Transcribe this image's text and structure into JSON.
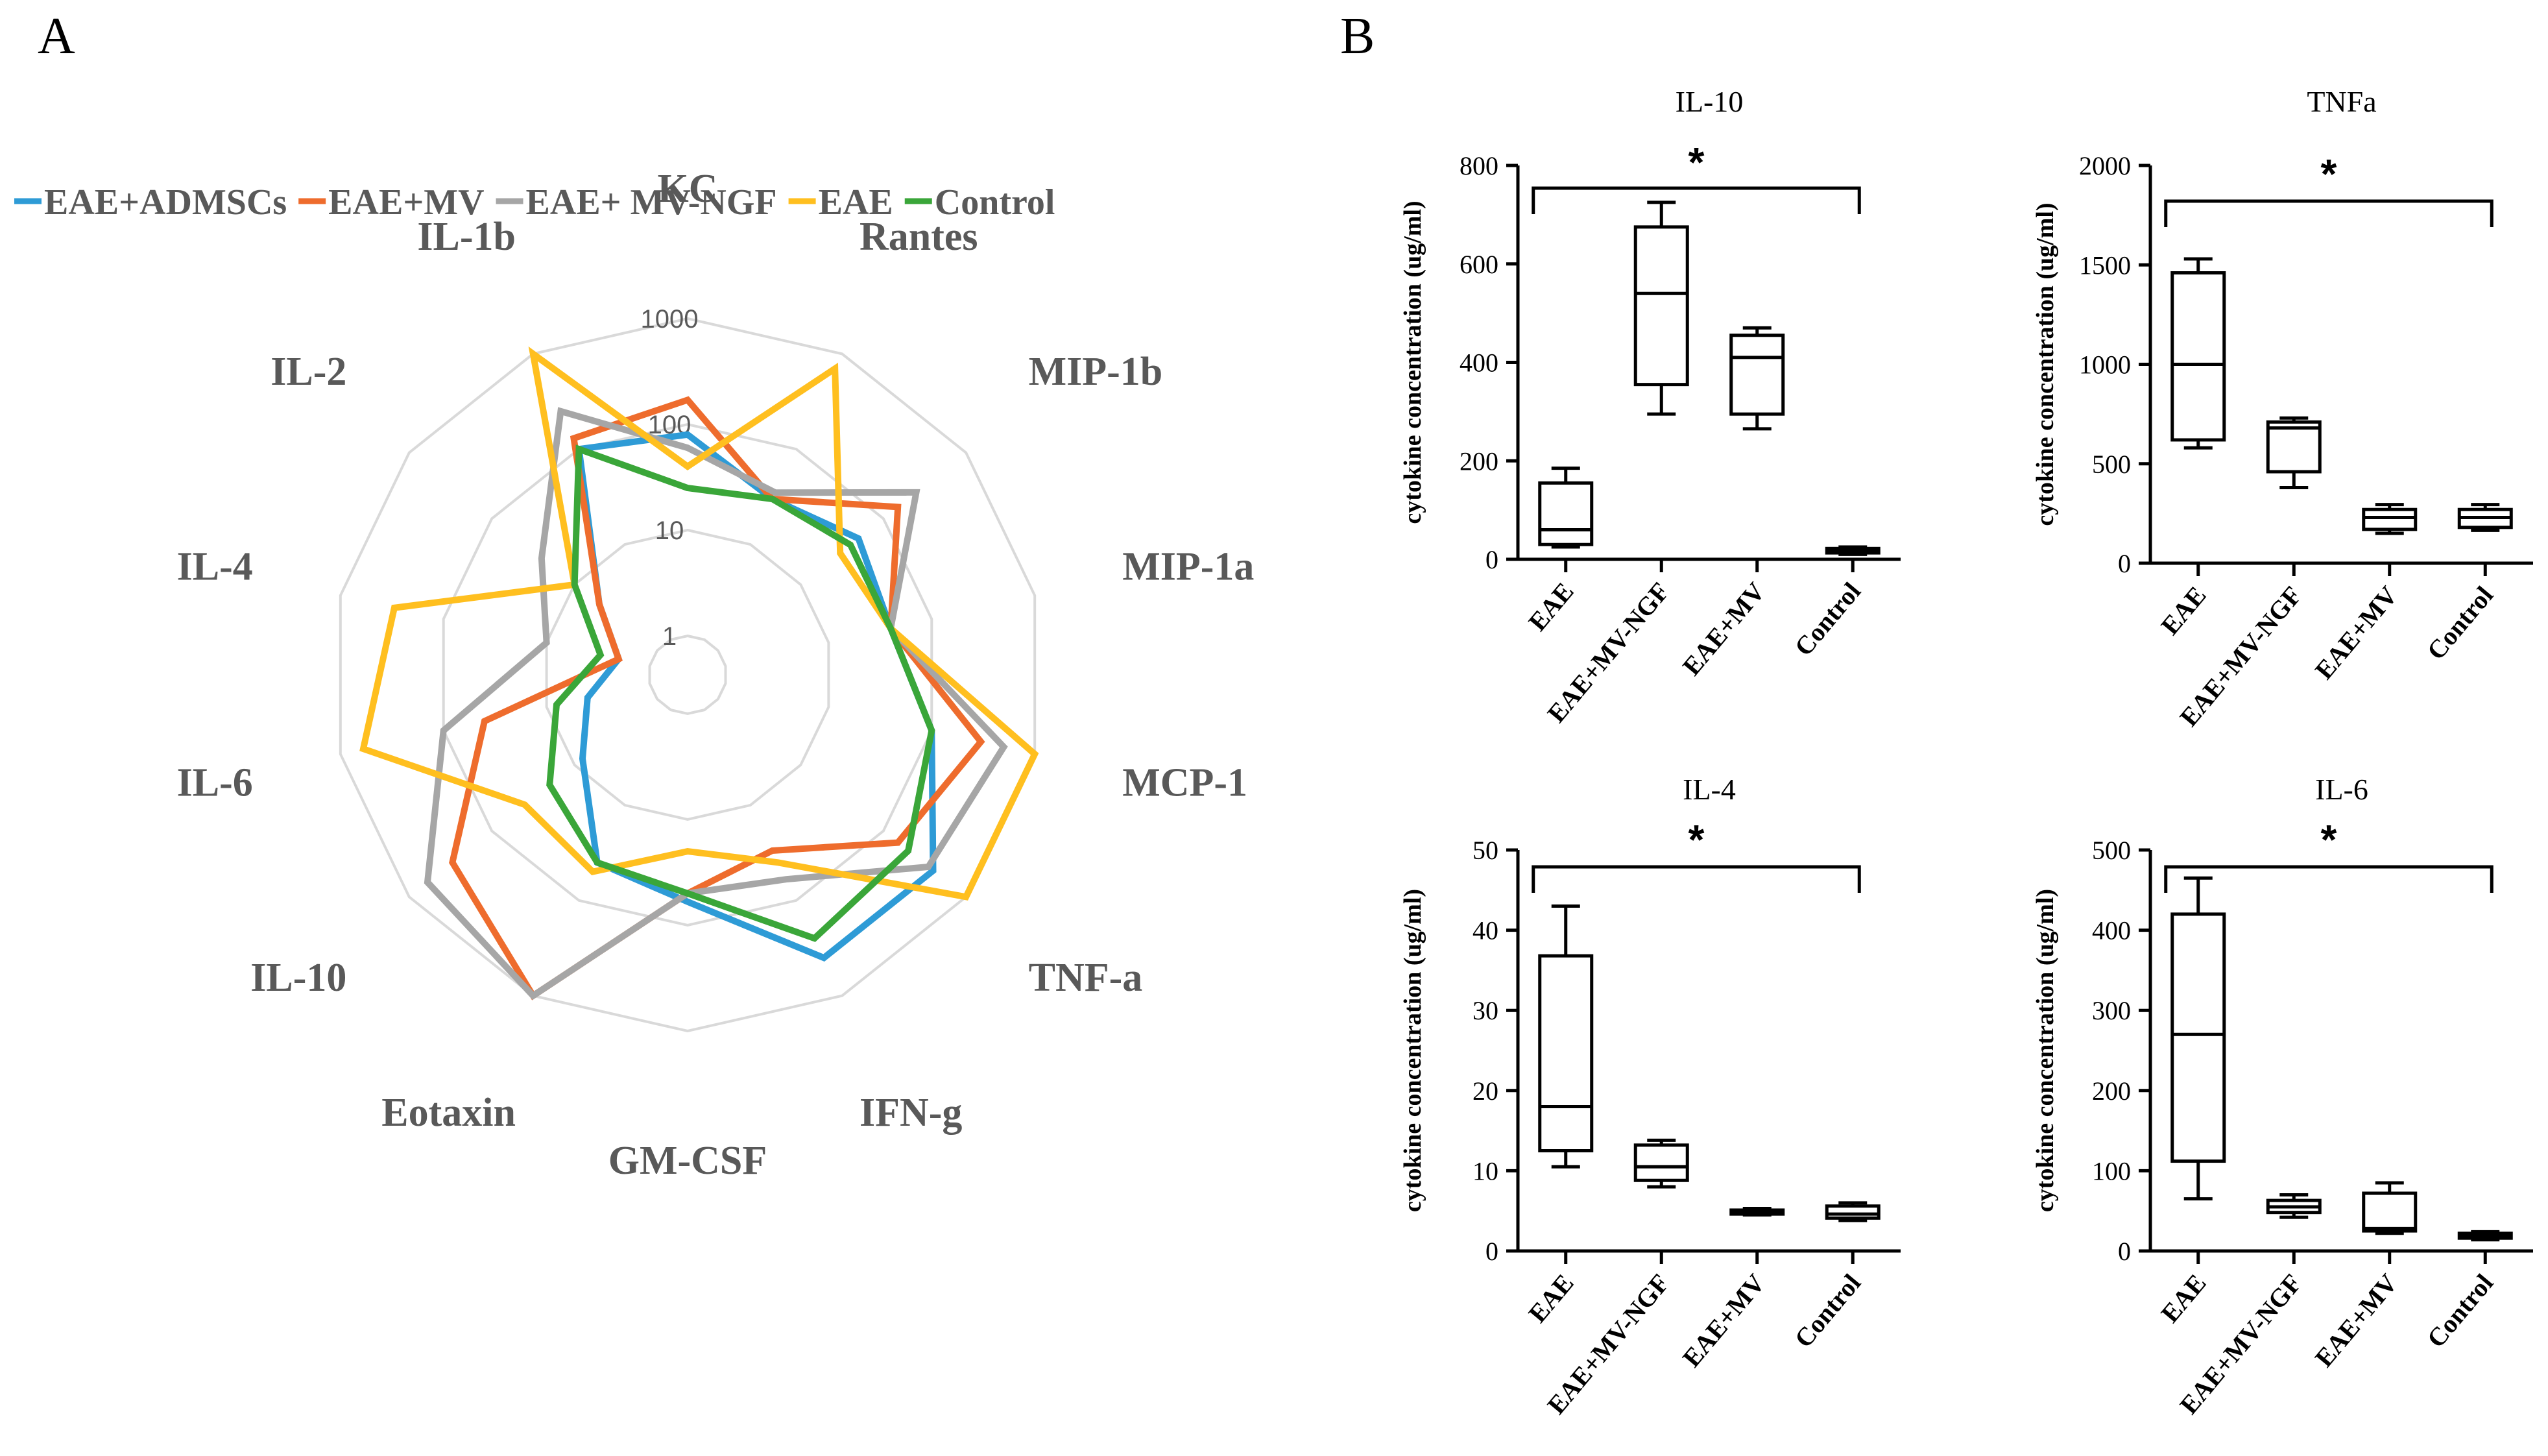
{
  "panels": {
    "a": "A",
    "b": "B"
  },
  "chart_data": [
    {
      "type": "radar",
      "scale": "log",
      "rings": [
        "1",
        "10",
        "100",
        "1000"
      ],
      "categories": [
        "KC",
        "Rantes",
        "MIP-1b",
        "MIP-1a",
        "MCP-1",
        "TNF-a",
        "IFN-g",
        "GM-CSF",
        "Eotaxin",
        "IL-10",
        "IL-6",
        "IL-4",
        "IL-2",
        "IL-1b"
      ],
      "legend_position": "top",
      "series": [
        {
          "name": "EAE+ADMSCs",
          "color": "#2e9bd6",
          "values": [
            80,
            30,
            50,
            40,
            100,
            400,
            400,
            60,
            40,
            8,
            4,
            2,
            5,
            100
          ]
        },
        {
          "name": "EAE+MV",
          "color": "#ee6c2d",
          "values": [
            170,
            30,
            150,
            40,
            300,
            150,
            30,
            50,
            1000,
            300,
            40,
            2,
            5,
            130
          ]
        },
        {
          "name": "EAE+ MV-NGF",
          "color": "#a6a6a6",
          "values": [
            60,
            35,
            250,
            40,
            500,
            350,
            60,
            50,
            1000,
            600,
            100,
            10,
            25,
            250
          ]
        },
        {
          "name": "EAE",
          "color": "#ffbf1f",
          "values": [
            40,
            700,
            30,
            40,
            1000,
            1000,
            40,
            20,
            50,
            40,
            600,
            300,
            10,
            1000
          ]
        },
        {
          "name": "Control",
          "color": "#3aa639",
          "values": [
            25,
            30,
            40,
            40,
            100,
            200,
            250,
            50,
            40,
            20,
            8,
            3,
            10,
            100
          ]
        }
      ]
    },
    {
      "type": "box",
      "title": "IL-10",
      "ylabel": "cytokine concentration (ug/ml)",
      "ylim": [
        0,
        800
      ],
      "yticks": [
        "0",
        "200",
        "400",
        "600",
        "800"
      ],
      "categories": [
        "EAE",
        "EAE+MV-NGF",
        "EAE+MV",
        "Control"
      ],
      "boxes": [
        {
          "min": 25,
          "q1": 30,
          "median": 60,
          "q3": 155,
          "max": 185
        },
        {
          "min": 295,
          "q1": 355,
          "median": 540,
          "q3": 675,
          "max": 725
        },
        {
          "min": 265,
          "q1": 295,
          "median": 410,
          "q3": 455,
          "max": 470
        },
        {
          "min": 10,
          "q1": 13,
          "median": 17,
          "q3": 22,
          "max": 25
        }
      ],
      "significance": "*"
    },
    {
      "type": "box",
      "title": "TNFa",
      "ylabel": "cytokine concentration (ug/ml)",
      "ylim": [
        0,
        2000
      ],
      "yticks": [
        "0",
        "500",
        "1000",
        "1500",
        "2000"
      ],
      "categories": [
        "EAE",
        "EAE+MV-NGF",
        "EAE+MV",
        "Control"
      ],
      "boxes": [
        {
          "min": 580,
          "q1": 620,
          "median": 1000,
          "q3": 1460,
          "max": 1530
        },
        {
          "min": 380,
          "q1": 460,
          "median": 680,
          "q3": 710,
          "max": 730
        },
        {
          "min": 150,
          "q1": 170,
          "median": 230,
          "q3": 270,
          "max": 295
        },
        {
          "min": 165,
          "q1": 180,
          "median": 230,
          "q3": 270,
          "max": 295
        }
      ],
      "significance": "*"
    },
    {
      "type": "box",
      "title": "IL-4",
      "ylabel": "cytokine concentration (ug/ml)",
      "ylim": [
        0,
        50
      ],
      "yticks": [
        "0",
        "10",
        "20",
        "30",
        "40",
        "50"
      ],
      "categories": [
        "EAE",
        "EAE+MV-NGF",
        "EAE+MV",
        "Control"
      ],
      "boxes": [
        {
          "min": 10.5,
          "q1": 12.5,
          "median": 18,
          "q3": 36.8,
          "max": 43
        },
        {
          "min": 8,
          "q1": 8.8,
          "median": 10.5,
          "q3": 13.2,
          "max": 13.8
        },
        {
          "min": 4.5,
          "q1": 4.6,
          "median": 4.8,
          "q3": 5.1,
          "max": 5.3
        },
        {
          "min": 3.8,
          "q1": 4.1,
          "median": 4.6,
          "q3": 5.6,
          "max": 6
        }
      ],
      "significance": "*"
    },
    {
      "type": "box",
      "title": "IL-6",
      "ylabel": "cytokine concentration (ug/ml)",
      "ylim": [
        0,
        500
      ],
      "yticks": [
        "0",
        "100",
        "200",
        "300",
        "400",
        "500"
      ],
      "categories": [
        "EAE",
        "EAE+MV-NGF",
        "EAE+MV",
        "Control"
      ],
      "boxes": [
        {
          "min": 65,
          "q1": 112,
          "median": 270,
          "q3": 420,
          "max": 465
        },
        {
          "min": 42,
          "q1": 48,
          "median": 55,
          "q3": 63,
          "max": 70
        },
        {
          "min": 22,
          "q1": 25,
          "median": 28,
          "q3": 72,
          "max": 85
        },
        {
          "min": 14,
          "q1": 16,
          "median": 19,
          "q3": 22,
          "max": 24
        }
      ],
      "significance": "*"
    }
  ]
}
